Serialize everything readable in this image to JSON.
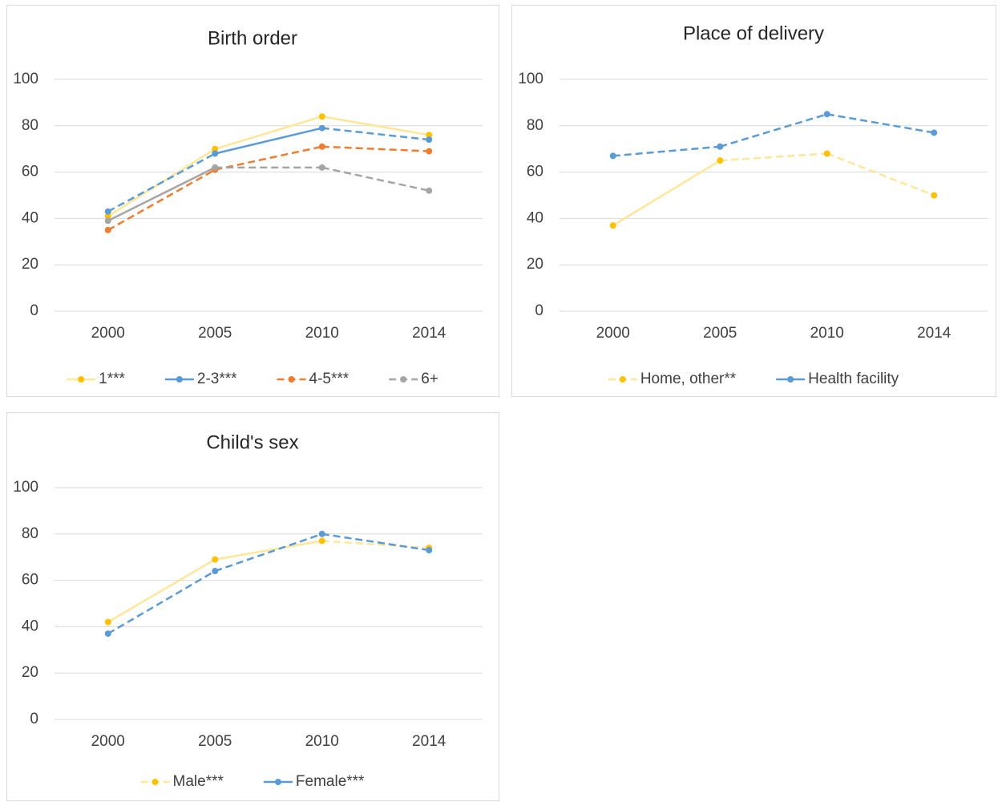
{
  "chart_data": [
    {
      "type": "line",
      "title": "Birth order",
      "categories": [
        "2000",
        "2005",
        "2010",
        "2014"
      ],
      "ylim": [
        0,
        100
      ],
      "yticks": [
        0,
        20,
        40,
        60,
        80,
        100
      ],
      "grid": true,
      "legend": "bottom",
      "series": [
        {
          "name": "1***",
          "color": "#ffe699",
          "marker_color": "#ffc000",
          "values": [
            41,
            70,
            84,
            76
          ],
          "line_styles": [
            "solid",
            "solid",
            "solid"
          ],
          "legend_style": "solid"
        },
        {
          "name": "2-3***",
          "color": "#5b9bd5",
          "marker_color": "#5b9bd5",
          "values": [
            43,
            68,
            79,
            74
          ],
          "line_styles": [
            "dashed",
            "solid",
            "dashed"
          ],
          "legend_style": "solid"
        },
        {
          "name": "4-5***",
          "color": "#ed7d31",
          "marker_color": "#ed7d31",
          "values": [
            35,
            61,
            71,
            69
          ],
          "line_styles": [
            "dashed",
            "dashed",
            "dashed"
          ],
          "legend_style": "dashed"
        },
        {
          "name": "6+",
          "color": "#a5a5a5",
          "marker_color": "#a5a5a5",
          "values": [
            39,
            62,
            62,
            52
          ],
          "line_styles": [
            "solid",
            "dashed",
            "dashed"
          ],
          "legend_style": "dashed"
        }
      ]
    },
    {
      "type": "line",
      "title": "Place of delivery",
      "categories": [
        "2000",
        "2005",
        "2010",
        "2014"
      ],
      "ylim": [
        0,
        100
      ],
      "yticks": [
        0,
        20,
        40,
        60,
        80,
        100
      ],
      "grid": true,
      "legend": "bottom",
      "series": [
        {
          "name": "Home, other**",
          "color": "#ffe699",
          "marker_color": "#ffc000",
          "values": [
            37,
            65,
            68,
            50
          ],
          "line_styles": [
            "solid",
            "dashed",
            "dashed"
          ],
          "legend_style": "dashed"
        },
        {
          "name": "Health facility",
          "color": "#5b9bd5",
          "marker_color": "#5b9bd5",
          "values": [
            67,
            71,
            85,
            77
          ],
          "line_styles": [
            "dashed",
            "dashed",
            "dashed"
          ],
          "legend_style": "solid"
        }
      ]
    },
    {
      "type": "line",
      "title": "Child's sex",
      "categories": [
        "2000",
        "2005",
        "2010",
        "2014"
      ],
      "ylim": [
        0,
        100
      ],
      "yticks": [
        0,
        20,
        40,
        60,
        80,
        100
      ],
      "grid": true,
      "legend": "bottom",
      "series": [
        {
          "name": "Male***",
          "color": "#ffe699",
          "marker_color": "#ffc000",
          "values": [
            42,
            69,
            77,
            74
          ],
          "line_styles": [
            "solid",
            "solid",
            "dashed"
          ],
          "legend_style": "dashed"
        },
        {
          "name": "Female***",
          "color": "#5b9bd5",
          "marker_color": "#5b9bd5",
          "values": [
            37,
            64,
            80,
            73
          ],
          "line_styles": [
            "dashed",
            "dashed",
            "dashed"
          ],
          "legend_style": "solid"
        }
      ]
    }
  ]
}
